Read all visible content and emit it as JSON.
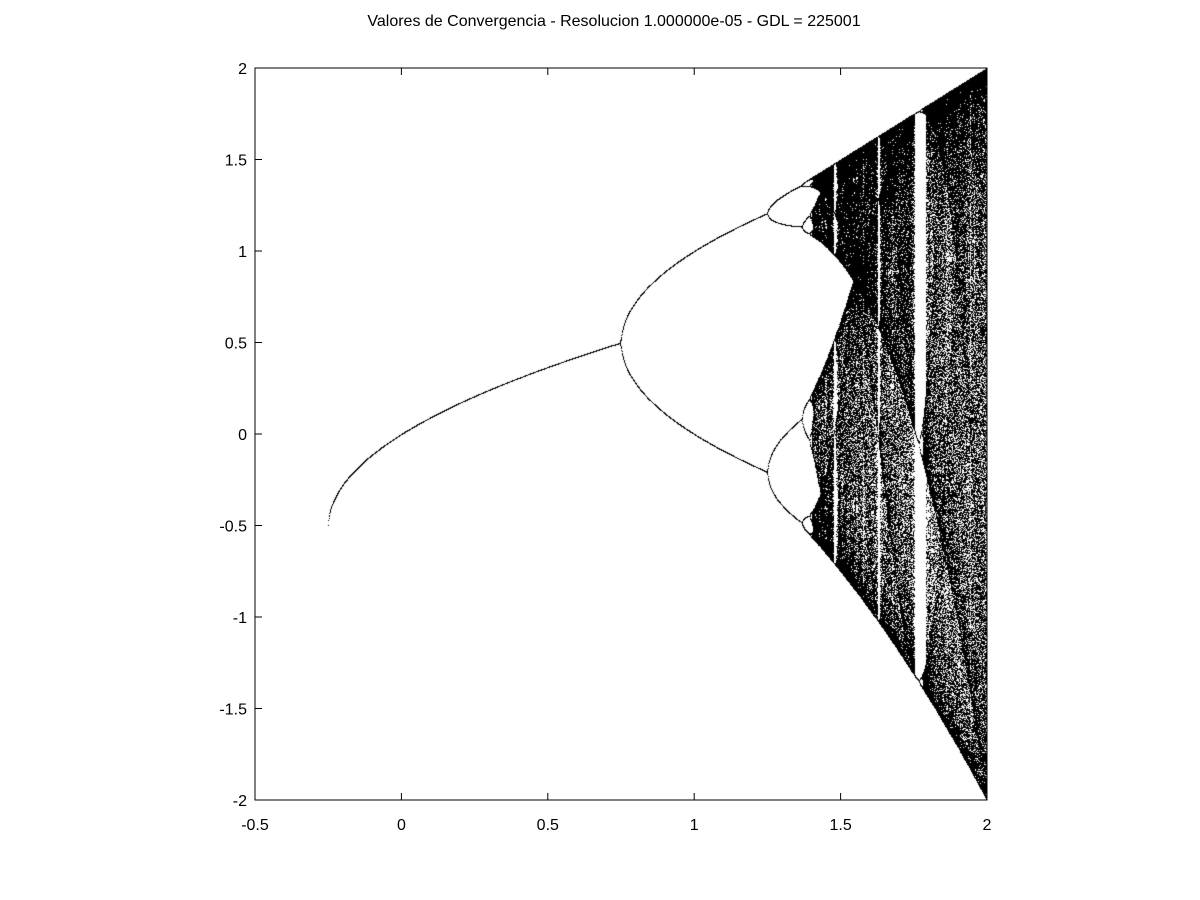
{
  "chart_data": {
    "type": "scatter",
    "title": "Valores de Convergencia - Resolucion  1.000000e-05 - GDL = 225001",
    "xlabel": "",
    "ylabel": "",
    "xlim": [
      -0.5,
      2
    ],
    "ylim": [
      -2,
      2
    ],
    "xticks": [
      -0.5,
      0,
      0.5,
      1,
      1.5,
      2
    ],
    "yticks": [
      -2,
      -1.5,
      -1,
      -0.5,
      0,
      0.5,
      1,
      1.5,
      2
    ],
    "xtick_labels": [
      "-0.5",
      "0",
      "0.5",
      "1",
      "1.5",
      "2"
    ],
    "ytick_labels": [
      "-2",
      "-1.5",
      "-1",
      "-0.5",
      "0",
      "0.5",
      "1",
      "1.5",
      "2"
    ],
    "grid": false,
    "legend": "none",
    "marker_color": "#000000",
    "series": [
      {
        "description_formula": "bifurcation diagram of the map x -> x^2 - c; stable fixed point x = (1 - sqrt(1 + 4c)) / 2 reversed sign, period-doubling at c = 0.75, 1.25, 1.368, chaos to c = 2",
        "c_range": [
          -0.25,
          2
        ],
        "x_range": [
          -2,
          2
        ]
      }
    ]
  }
}
